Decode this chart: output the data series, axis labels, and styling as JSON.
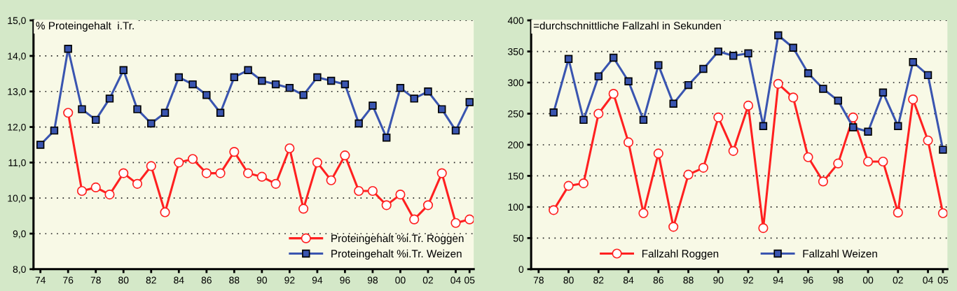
{
  "chart_data": [
    {
      "type": "line",
      "title": "% Proteingehalt  i.Tr.",
      "x": [
        1974,
        1975,
        1976,
        1977,
        1978,
        1979,
        1980,
        1981,
        1982,
        1983,
        1984,
        1985,
        1986,
        1987,
        1988,
        1989,
        1990,
        1991,
        1992,
        1993,
        1994,
        1995,
        1996,
        1997,
        1998,
        1999,
        2000,
        2001,
        2002,
        2003,
        2004,
        2005
      ],
      "series": [
        {
          "name": "Proteingehalt %i.Tr. Roggen",
          "color": "#ff2020",
          "marker": "circle",
          "values": [
            null,
            null,
            12.4,
            10.2,
            10.3,
            10.1,
            10.7,
            10.4,
            10.9,
            9.6,
            11.0,
            11.1,
            10.7,
            10.7,
            11.3,
            10.7,
            10.6,
            10.4,
            11.4,
            9.7,
            11.0,
            10.5,
            11.2,
            10.2,
            10.2,
            9.8,
            10.1,
            9.4,
            9.8,
            10.7,
            9.3,
            9.4
          ]
        },
        {
          "name": "Proteingehalt %i.Tr. Weizen",
          "color": "#3a55b0",
          "marker": "square",
          "values": [
            11.5,
            11.9,
            14.2,
            12.5,
            12.2,
            12.8,
            13.6,
            12.5,
            12.1,
            12.4,
            13.4,
            13.2,
            12.9,
            12.4,
            13.4,
            13.6,
            13.3,
            13.2,
            13.1,
            12.9,
            13.4,
            13.3,
            13.2,
            12.1,
            12.6,
            11.7,
            13.1,
            12.8,
            13.0,
            12.5,
            11.9,
            12.7
          ]
        }
      ],
      "xlim": [
        1973.5,
        2005.3
      ],
      "xticks": [
        {
          "value": 1974,
          "label": "74"
        },
        {
          "value": 1976,
          "label": "76"
        },
        {
          "value": 1978,
          "label": "78"
        },
        {
          "value": 1980,
          "label": "80"
        },
        {
          "value": 1982,
          "label": "82"
        },
        {
          "value": 1984,
          "label": "84"
        },
        {
          "value": 1986,
          "label": "86"
        },
        {
          "value": 1988,
          "label": "88"
        },
        {
          "value": 1990,
          "label": "90"
        },
        {
          "value": 1992,
          "label": "92"
        },
        {
          "value": 1994,
          "label": "94"
        },
        {
          "value": 1996,
          "label": "96"
        },
        {
          "value": 1998,
          "label": "98"
        },
        {
          "value": 2000,
          "label": "00"
        },
        {
          "value": 2002,
          "label": "02"
        },
        {
          "value": 2004,
          "label": "04"
        },
        {
          "value": 2005,
          "label": "05"
        }
      ],
      "ylim": [
        8,
        15
      ],
      "yticks": [
        {
          "value": 8,
          "label": "8,0"
        },
        {
          "value": 9,
          "label": "9,0"
        },
        {
          "value": 10,
          "label": "10,0"
        },
        {
          "value": 11,
          "label": "11,0"
        },
        {
          "value": 12,
          "label": "12,0"
        },
        {
          "value": 13,
          "label": "13,0"
        },
        {
          "value": 14,
          "label": "14,0"
        },
        {
          "value": 15,
          "label": "15,0"
        }
      ],
      "grid": "y",
      "legend": "bottom right"
    },
    {
      "type": "line",
      "title": "=durchschnittliche Fallzahl in Sekunden",
      "x": [
        1979,
        1980,
        1981,
        1982,
        1983,
        1984,
        1985,
        1986,
        1987,
        1988,
        1989,
        1990,
        1991,
        1992,
        1993,
        1994,
        1995,
        1996,
        1997,
        1998,
        1999,
        2000,
        2001,
        2002,
        2003,
        2004,
        2005
      ],
      "series": [
        {
          "name": "Fallzahl Roggen",
          "color": "#ff2020",
          "marker": "circle",
          "values": [
            95,
            134,
            138,
            250,
            282,
            204,
            90,
            186,
            68,
            152,
            163,
            244,
            190,
            263,
            66,
            298,
            276,
            180,
            141,
            170,
            244,
            173,
            173,
            91,
            273,
            207,
            90
          ]
        },
        {
          "name": "Fallzahl Weizen",
          "color": "#3a55b0",
          "marker": "square",
          "values": [
            252,
            338,
            240,
            310,
            340,
            302,
            240,
            328,
            266,
            296,
            322,
            350,
            343,
            347,
            230,
            376,
            356,
            315,
            290,
            271,
            228,
            221,
            284,
            230,
            333,
            312,
            192
          ]
        }
      ],
      "xlim": [
        1977.5,
        2005.3
      ],
      "xticks": [
        {
          "value": 1978,
          "label": "78"
        },
        {
          "value": 1980,
          "label": "80"
        },
        {
          "value": 1982,
          "label": "82"
        },
        {
          "value": 1984,
          "label": "84"
        },
        {
          "value": 1986,
          "label": "86"
        },
        {
          "value": 1988,
          "label": "88"
        },
        {
          "value": 1990,
          "label": "90"
        },
        {
          "value": 1992,
          "label": "92"
        },
        {
          "value": 1994,
          "label": "94"
        },
        {
          "value": 1996,
          "label": "96"
        },
        {
          "value": 1998,
          "label": "98"
        },
        {
          "value": 2000,
          "label": "00"
        },
        {
          "value": 2002,
          "label": "02"
        },
        {
          "value": 2004,
          "label": "04"
        },
        {
          "value": 2005,
          "label": "05"
        }
      ],
      "ylim": [
        0,
        400
      ],
      "yticks": [
        0,
        50,
        100,
        150,
        200,
        250,
        300,
        350,
        400
      ],
      "grid": "y",
      "legend": "bottom"
    }
  ]
}
